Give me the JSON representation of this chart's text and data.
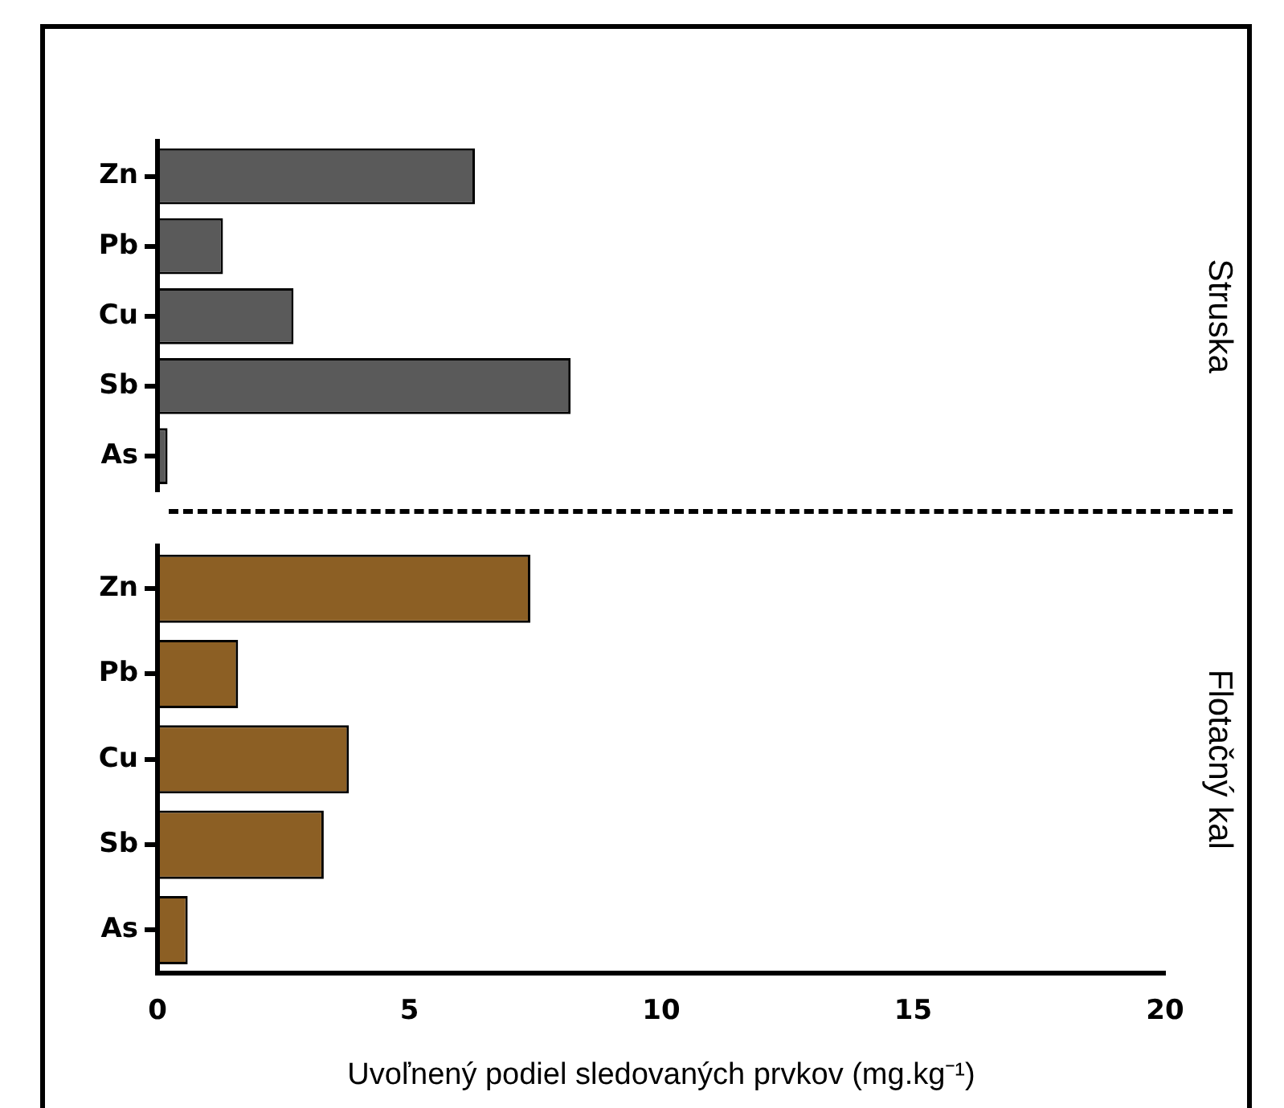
{
  "chart_data": [
    {
      "type": "bar",
      "orientation": "horizontal",
      "categories": [
        "Zn",
        "Pb",
        "Cu",
        "Sb",
        "As"
      ],
      "values": [
        6.3,
        1.3,
        2.7,
        8.2,
        0.2
      ],
      "color": "#5a5a5a",
      "xlim": [
        0,
        20
      ],
      "xticks": [
        0,
        5,
        10,
        15,
        20
      ],
      "y2label": "Struska",
      "tick_labels": "y",
      "grid": false,
      "legend": false
    },
    {
      "type": "bar",
      "orientation": "horizontal",
      "categories": [
        "Zn",
        "Pb",
        "Cu",
        "Sb",
        "As"
      ],
      "values": [
        7.4,
        1.6,
        3.8,
        3.3,
        0.6
      ],
      "color": "#8c5f24",
      "xlim": [
        0,
        20
      ],
      "xticks": [
        0,
        5,
        10,
        15,
        20
      ],
      "y2label": "Flotačný kal",
      "xlabel": "Uvoľnený podiel sledovaných prvkov (mg.kg⁻¹)",
      "grid": false,
      "legend": false
    }
  ]
}
